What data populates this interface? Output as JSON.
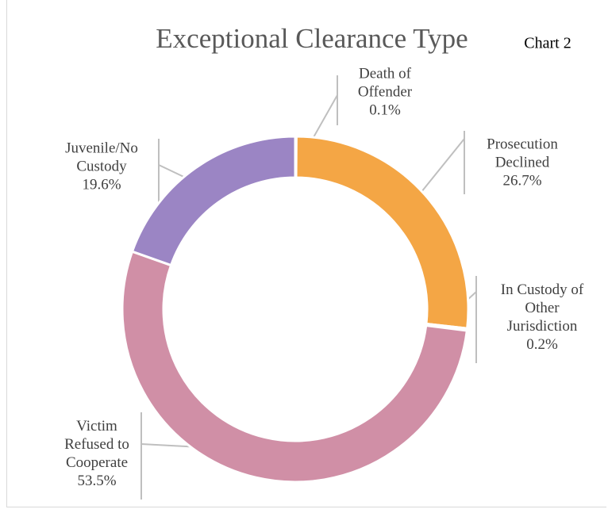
{
  "chart_data": {
    "type": "donut",
    "title": "Exceptional Clearance Type",
    "subtitle": "Chart 2",
    "categories": [
      "Death of Offender",
      "Prosecution Declined",
      "In Custody of Other Jurisdiction",
      "Victim Refused to Cooperate",
      "Juvenile/No Custody"
    ],
    "values": [
      0.1,
      26.7,
      0.2,
      53.5,
      19.6
    ],
    "value_labels": [
      "0.1%",
      "26.7%",
      "0.2%",
      "53.5%",
      "19.6%"
    ],
    "colors": [
      "#6f8fc0",
      "#f4a645",
      "#8fa3b8",
      "#d08fa6",
      "#9b85c4"
    ]
  }
}
